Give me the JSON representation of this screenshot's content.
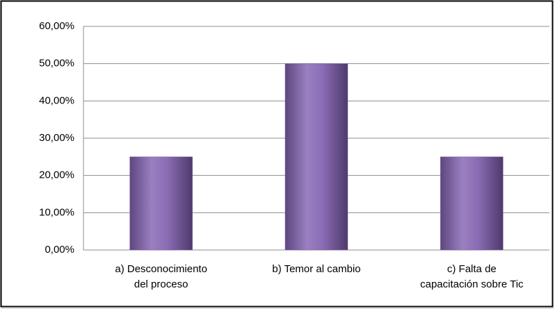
{
  "chart_data": {
    "type": "bar",
    "categories": [
      "a)      Desconocimiento\ndel proceso",
      "b)      Temor al cambio",
      "c)     Falta de\ncapacitación sobre Tic"
    ],
    "values": [
      25,
      50,
      25
    ],
    "color": "#8064a2",
    "ylim": [
      0,
      60
    ],
    "yticks": [
      {
        "value": 0,
        "label": "0,00%"
      },
      {
        "value": 10,
        "label": "10,00%"
      },
      {
        "value": 20,
        "label": "20,00%"
      },
      {
        "value": 30,
        "label": "30,00%"
      },
      {
        "value": 40,
        "label": "40,00%"
      },
      {
        "value": 50,
        "label": "50,00%"
      },
      {
        "value": 60,
        "label": "60,00%"
      }
    ],
    "grid": true
  }
}
